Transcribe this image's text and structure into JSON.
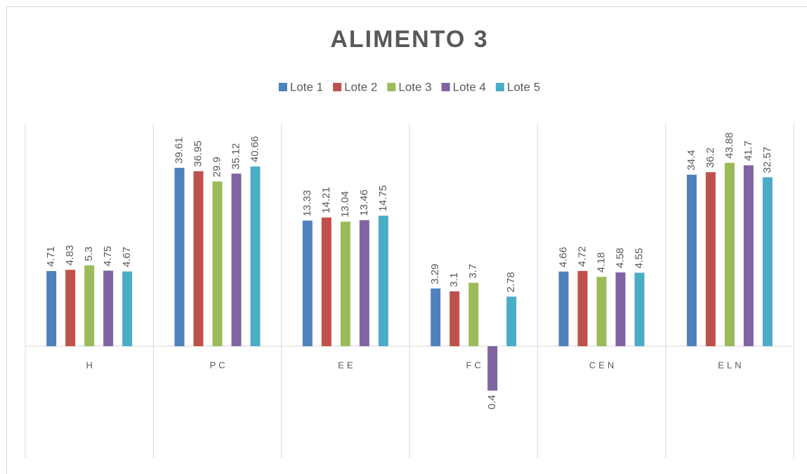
{
  "chart_data": {
    "type": "bar",
    "title": "ALIMENTO 3",
    "categories": [
      "H",
      "PC",
      "EE",
      "FC",
      "CEN",
      "ELN"
    ],
    "series": [
      {
        "name": "Lote 1",
        "color": "#4f81bd",
        "values": [
          4.71,
          39.61,
          13.33,
          3.29,
          4.66,
          34.4
        ]
      },
      {
        "name": "Lote 2",
        "color": "#c0504d",
        "values": [
          4.83,
          36.95,
          14.21,
          3.1,
          4.72,
          36.2
        ]
      },
      {
        "name": "Lote 3",
        "color": "#9bbb59",
        "values": [
          5.3,
          29.9,
          13.04,
          3.7,
          4.18,
          43.88
        ]
      },
      {
        "name": "Lote 4",
        "color": "#8064a2",
        "values": [
          4.75,
          35.12,
          13.46,
          0.4,
          4.58,
          41.7
        ]
      },
      {
        "name": "Lote 5",
        "color": "#4bacc6",
        "values": [
          4.67,
          40.66,
          14.75,
          2.78,
          4.55,
          32.57
        ]
      }
    ],
    "ylim": [
      0.1,
      100
    ],
    "log_scale": true,
    "legend": "top"
  }
}
